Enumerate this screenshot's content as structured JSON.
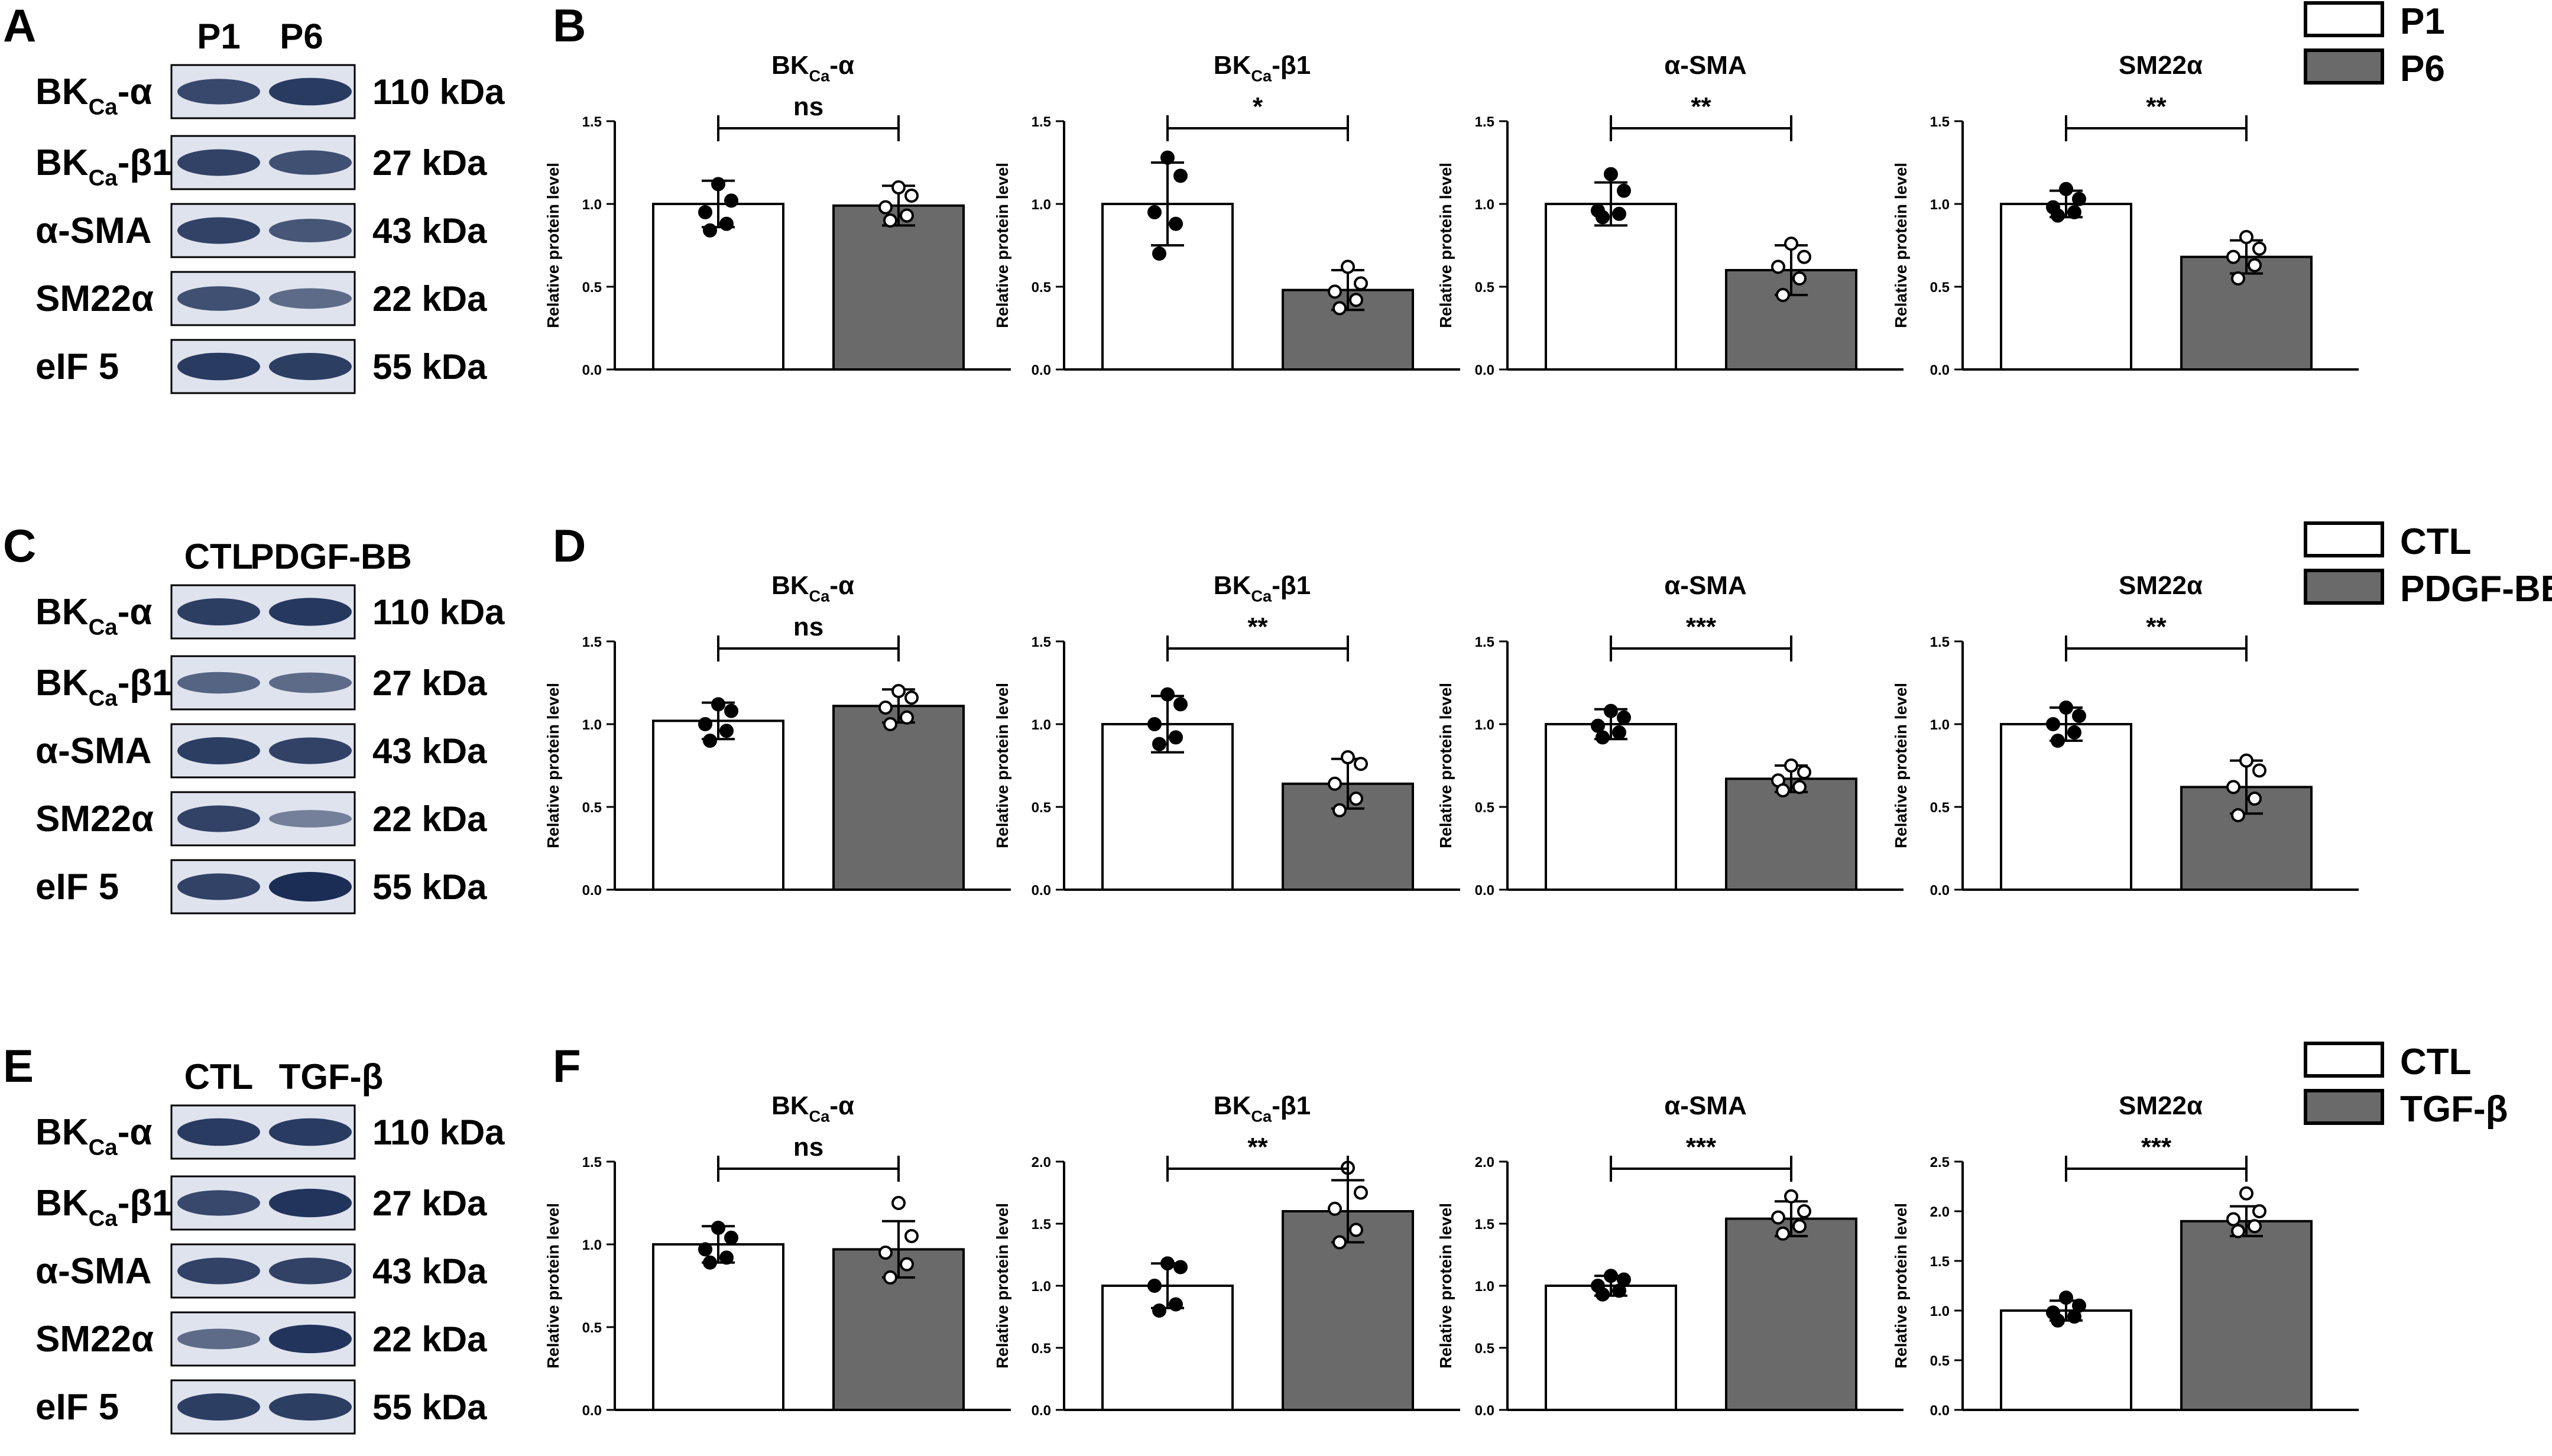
{
  "colors": {
    "group1": "#ffffff",
    "group2": "#6a6a6a",
    "axis": "#000000",
    "band": "#1b2d55",
    "blot_bg": "#dfe3ee"
  },
  "rows": [
    {
      "blot": {
        "letter": "A",
        "lanes": [
          "P1",
          "P6"
        ],
        "strips": [
          {
            "name_main": "BK",
            "name_sub": "Ca",
            "name_suffix": "-α",
            "kda": "110 kDa",
            "intensity": [
              0.8,
              0.9
            ]
          },
          {
            "name_main": "BK",
            "name_sub": "Ca",
            "name_suffix": "-β1",
            "kda": "27 kDa",
            "intensity": [
              0.85,
              0.75
            ]
          },
          {
            "name_main": "α-SMA",
            "name_sub": "",
            "name_suffix": "",
            "kda": "43 kDa",
            "intensity": [
              0.85,
              0.7
            ]
          },
          {
            "name_main": "SM22α",
            "name_sub": "",
            "name_suffix": "",
            "kda": "22 kDa",
            "intensity": [
              0.75,
              0.55
            ]
          },
          {
            "name_main": "eIF 5",
            "name_sub": "",
            "name_suffix": "",
            "kda": "55 kDa",
            "intensity": [
              0.9,
              0.88
            ]
          }
        ]
      },
      "letter": "B",
      "legend": [
        "P1",
        "P6"
      ]
    },
    {
      "blot": {
        "letter": "C",
        "lanes": [
          "CTL",
          "PDGF-BB"
        ],
        "strips": [
          {
            "name_main": "BK",
            "name_sub": "Ca",
            "name_suffix": "-α",
            "kda": "110 kDa",
            "intensity": [
              0.88,
              0.92
            ]
          },
          {
            "name_main": "BK",
            "name_sub": "Ca",
            "name_suffix": "-β1",
            "kda": "27 kDa",
            "intensity": [
              0.6,
              0.55
            ]
          },
          {
            "name_main": "α-SMA",
            "name_sub": "",
            "name_suffix": "",
            "kda": "43 kDa",
            "intensity": [
              0.88,
              0.85
            ]
          },
          {
            "name_main": "SM22α",
            "name_sub": "",
            "name_suffix": "",
            "kda": "22 kDa",
            "intensity": [
              0.85,
              0.4
            ]
          },
          {
            "name_main": "eIF 5",
            "name_sub": "",
            "name_suffix": "",
            "kda": "55 kDa",
            "intensity": [
              0.85,
              1.0
            ]
          }
        ]
      },
      "letter": "D",
      "legend": [
        "CTL",
        "PDGF-BB"
      ]
    },
    {
      "blot": {
        "letter": "E",
        "lanes": [
          "CTL",
          "TGF-β"
        ],
        "strips": [
          {
            "name_main": "BK",
            "name_sub": "Ca",
            "name_suffix": "-α",
            "kda": "110 kDa",
            "intensity": [
              0.9,
              0.9
            ]
          },
          {
            "name_main": "BK",
            "name_sub": "Ca",
            "name_suffix": "-β1",
            "kda": "27 kDa",
            "intensity": [
              0.8,
              0.95
            ]
          },
          {
            "name_main": "α-SMA",
            "name_sub": "",
            "name_suffix": "",
            "kda": "43 kDa",
            "intensity": [
              0.85,
              0.85
            ]
          },
          {
            "name_main": "SM22α",
            "name_sub": "",
            "name_suffix": "",
            "kda": "22 kDa",
            "intensity": [
              0.55,
              0.95
            ]
          },
          {
            "name_main": "eIF 5",
            "name_sub": "",
            "name_suffix": "",
            "kda": "55 kDa",
            "intensity": [
              0.88,
              0.88
            ]
          }
        ]
      },
      "letter": "F",
      "legend": [
        "CTL",
        "TGF-β"
      ]
    }
  ],
  "chart_data": [
    {
      "type": "bar",
      "panel": "B",
      "title_main": "BK",
      "title_sub": "Ca",
      "title_suffix": "-α",
      "ylabel": "Relative protein level",
      "ylim": [
        0,
        1.5
      ],
      "yticks": [
        "0.0",
        "0.5",
        "1.0",
        "1.5"
      ],
      "categories": [
        "P1",
        "P6"
      ],
      "values": [
        1.0,
        0.99
      ],
      "errors": [
        0.14,
        0.12
      ],
      "significance": "ns",
      "points": [
        [
          1.12,
          1.02,
          0.95,
          0.88,
          0.84
        ],
        [
          1.1,
          1.05,
          0.98,
          0.93,
          0.9
        ]
      ]
    },
    {
      "type": "bar",
      "panel": "B",
      "title_main": "BK",
      "title_sub": "Ca",
      "title_suffix": "-β1",
      "ylabel": "Relative protein level",
      "ylim": [
        0,
        1.5
      ],
      "yticks": [
        "0.0",
        "0.5",
        "1.0",
        "1.5"
      ],
      "categories": [
        "P1",
        "P6"
      ],
      "values": [
        1.0,
        0.48
      ],
      "errors": [
        0.25,
        0.12
      ],
      "significance": "*",
      "points": [
        [
          1.28,
          1.17,
          0.95,
          0.88,
          0.7
        ],
        [
          0.62,
          0.52,
          0.47,
          0.42,
          0.37
        ]
      ]
    },
    {
      "type": "bar",
      "panel": "B",
      "title_main": "α-SMA",
      "title_sub": "",
      "title_suffix": "",
      "ylabel": "Relative protein level",
      "ylim": [
        0,
        1.5
      ],
      "yticks": [
        "0.0",
        "0.5",
        "1.0",
        "1.5"
      ],
      "categories": [
        "P1",
        "P6"
      ],
      "values": [
        1.0,
        0.6
      ],
      "errors": [
        0.13,
        0.15
      ],
      "significance": "**",
      "points": [
        [
          1.18,
          1.08,
          0.96,
          0.94,
          0.92
        ],
        [
          0.76,
          0.68,
          0.62,
          0.55,
          0.45
        ]
      ]
    },
    {
      "type": "bar",
      "panel": "B",
      "title_main": "SM22α",
      "title_sub": "",
      "title_suffix": "",
      "ylabel": "Relative protein level",
      "ylim": [
        0,
        1.5
      ],
      "yticks": [
        "0.0",
        "0.5",
        "1.0",
        "1.5"
      ],
      "categories": [
        "P1",
        "P6"
      ],
      "values": [
        1.0,
        0.68
      ],
      "errors": [
        0.08,
        0.1
      ],
      "significance": "**",
      "points": [
        [
          1.09,
          1.03,
          0.98,
          0.95,
          0.93
        ],
        [
          0.8,
          0.73,
          0.68,
          0.63,
          0.55
        ]
      ]
    },
    {
      "type": "bar",
      "panel": "D",
      "title_main": "BK",
      "title_sub": "Ca",
      "title_suffix": "-α",
      "ylabel": "Relative protein level",
      "ylim": [
        0,
        1.5
      ],
      "yticks": [
        "0.0",
        "0.5",
        "1.0",
        "1.5"
      ],
      "categories": [
        "CTL",
        "PDGF-BB"
      ],
      "values": [
        1.02,
        1.11
      ],
      "errors": [
        0.11,
        0.1
      ],
      "significance": "ns",
      "points": [
        [
          1.12,
          1.08,
          1.0,
          0.96,
          0.9
        ],
        [
          1.2,
          1.16,
          1.1,
          1.04,
          1.0
        ]
      ]
    },
    {
      "type": "bar",
      "panel": "D",
      "title_main": "BK",
      "title_sub": "Ca",
      "title_suffix": "-β1",
      "ylabel": "Relative protein level",
      "ylim": [
        0,
        1.5
      ],
      "yticks": [
        "0.0",
        "0.5",
        "1.0",
        "1.5"
      ],
      "categories": [
        "CTL",
        "PDGF-BB"
      ],
      "values": [
        1.0,
        0.64
      ],
      "errors": [
        0.17,
        0.15
      ],
      "significance": "**",
      "points": [
        [
          1.18,
          1.12,
          1.0,
          0.92,
          0.88
        ],
        [
          0.8,
          0.76,
          0.64,
          0.55,
          0.48
        ]
      ]
    },
    {
      "type": "bar",
      "panel": "D",
      "title_main": "α-SMA",
      "title_sub": "",
      "title_suffix": "",
      "ylabel": "Relative protein level",
      "ylim": [
        0,
        1.5
      ],
      "yticks": [
        "0.0",
        "0.5",
        "1.0",
        "1.5"
      ],
      "categories": [
        "CTL",
        "PDGF-BB"
      ],
      "values": [
        1.0,
        0.67
      ],
      "errors": [
        0.09,
        0.08
      ],
      "significance": "***",
      "points": [
        [
          1.08,
          1.04,
          0.99,
          0.95,
          0.92
        ],
        [
          0.75,
          0.71,
          0.66,
          0.62,
          0.6
        ]
      ]
    },
    {
      "type": "bar",
      "panel": "D",
      "title_main": "SM22α",
      "title_sub": "",
      "title_suffix": "",
      "ylabel": "Relative protein level",
      "ylim": [
        0,
        1.5
      ],
      "yticks": [
        "0.0",
        "0.5",
        "1.0",
        "1.5"
      ],
      "categories": [
        "CTL",
        "PDGF-BB"
      ],
      "values": [
        1.0,
        0.62
      ],
      "errors": [
        0.1,
        0.16
      ],
      "significance": "**",
      "points": [
        [
          1.1,
          1.05,
          1.0,
          0.95,
          0.9
        ],
        [
          0.78,
          0.72,
          0.62,
          0.55,
          0.45
        ]
      ]
    },
    {
      "type": "bar",
      "panel": "F",
      "title_main": "BK",
      "title_sub": "Ca",
      "title_suffix": "-α",
      "ylabel": "Relative protein level",
      "ylim": [
        0,
        1.5
      ],
      "yticks": [
        "0.0",
        "0.5",
        "1.0",
        "1.5"
      ],
      "categories": [
        "CTL",
        "TGF-β"
      ],
      "values": [
        1.0,
        0.97
      ],
      "errors": [
        0.11,
        0.17
      ],
      "significance": "ns",
      "points": [
        [
          1.1,
          1.04,
          0.97,
          0.92,
          0.89
        ],
        [
          1.25,
          1.05,
          0.95,
          0.88,
          0.8
        ]
      ]
    },
    {
      "type": "bar",
      "panel": "F",
      "title_main": "BK",
      "title_sub": "Ca",
      "title_suffix": "-β1",
      "ylabel": "Relative protein level",
      "ylim": [
        0,
        2.0
      ],
      "yticks": [
        "0.0",
        "0.5",
        "1.0",
        "1.5",
        "2.0"
      ],
      "categories": [
        "CTL",
        "TGF-β"
      ],
      "values": [
        1.0,
        1.6
      ],
      "errors": [
        0.18,
        0.25
      ],
      "significance": "**",
      "points": [
        [
          1.18,
          1.15,
          1.0,
          0.85,
          0.8
        ],
        [
          1.95,
          1.75,
          1.62,
          1.45,
          1.35
        ]
      ]
    },
    {
      "type": "bar",
      "panel": "F",
      "title_main": "α-SMA",
      "title_sub": "",
      "title_suffix": "",
      "ylabel": "Relative protein level",
      "ylim": [
        0,
        2.0
      ],
      "yticks": [
        "0.0",
        "0.5",
        "1.0",
        "1.5",
        "2.0"
      ],
      "categories": [
        "CTL",
        "TGF-β"
      ],
      "values": [
        1.0,
        1.54
      ],
      "errors": [
        0.08,
        0.14
      ],
      "significance": "***",
      "points": [
        [
          1.08,
          1.05,
          1.0,
          0.96,
          0.93
        ],
        [
          1.72,
          1.6,
          1.55,
          1.48,
          1.42
        ]
      ]
    },
    {
      "type": "bar",
      "panel": "F",
      "title_main": "SM22α",
      "title_sub": "",
      "title_suffix": "",
      "ylabel": "Relative protein level",
      "ylim": [
        0,
        2.5
      ],
      "yticks": [
        "0.0",
        "0.5",
        "1.0",
        "1.5",
        "2.0",
        "2.5"
      ],
      "categories": [
        "CTL",
        "TGF-β"
      ],
      "values": [
        1.0,
        1.9
      ],
      "errors": [
        0.1,
        0.15
      ],
      "significance": "***",
      "points": [
        [
          1.13,
          1.05,
          0.98,
          0.94,
          0.9
        ],
        [
          2.18,
          2.0,
          1.92,
          1.85,
          1.8
        ]
      ]
    }
  ]
}
